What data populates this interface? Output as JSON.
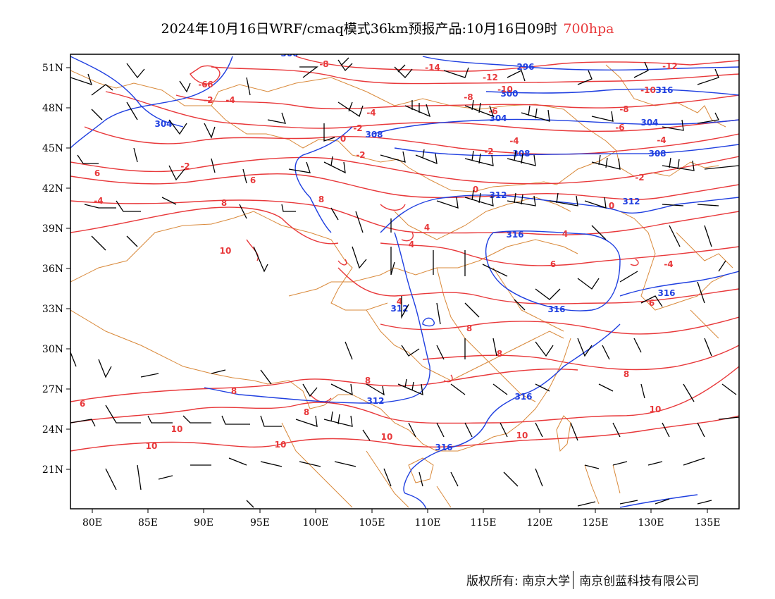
{
  "title": {
    "main": "2024年10月16日WRF/cmaq模式36km预报产品:10月16日09时",
    "level": "700hpa"
  },
  "colors": {
    "height_contour": "#1f3fe0",
    "temp_contour": "#e8383a",
    "border": "#d9893a",
    "wind_barb": "#000000",
    "frame": "#000000"
  },
  "axes": {
    "lat_ticks": [
      "51N",
      "48N",
      "45N",
      "42N",
      "39N",
      "36N",
      "33N",
      "30N",
      "27N",
      "24N",
      "21N"
    ],
    "lon_ticks": [
      "80E",
      "85E",
      "90E",
      "95E",
      "100E",
      "105E",
      "110E",
      "115E",
      "120E",
      "125E",
      "130E",
      "135E"
    ]
  },
  "contour_labels": {
    "height": [
      "304",
      "300",
      "296",
      "304",
      "300",
      "304",
      "308",
      "308",
      "308",
      "312",
      "312",
      "316",
      "316",
      "316",
      "312",
      "312",
      "316",
      "316",
      "316"
    ],
    "temp": [
      "-8",
      "-14",
      "-12",
      "-10",
      "-10",
      "-12",
      "-6",
      "-2",
      "-4",
      "-8",
      "-6",
      "-4",
      "-2",
      "-6",
      "-8",
      "0",
      "-2",
      "-4",
      "-2",
      "-4",
      "-2",
      "0",
      "0",
      "-2",
      "-4",
      "6",
      "8",
      "4",
      "4",
      "4",
      "6",
      "8",
      "8",
      "8",
      "6",
      "8",
      "8",
      "-4",
      "4",
      "6",
      "8",
      "10",
      "10",
      "10",
      "10",
      "10",
      "10",
      "6",
      "8",
      "10",
      "-6"
    ]
  },
  "footer": {
    "left": "版权所有: 南京大学",
    "right": "南京创蓝科技有限公司"
  }
}
